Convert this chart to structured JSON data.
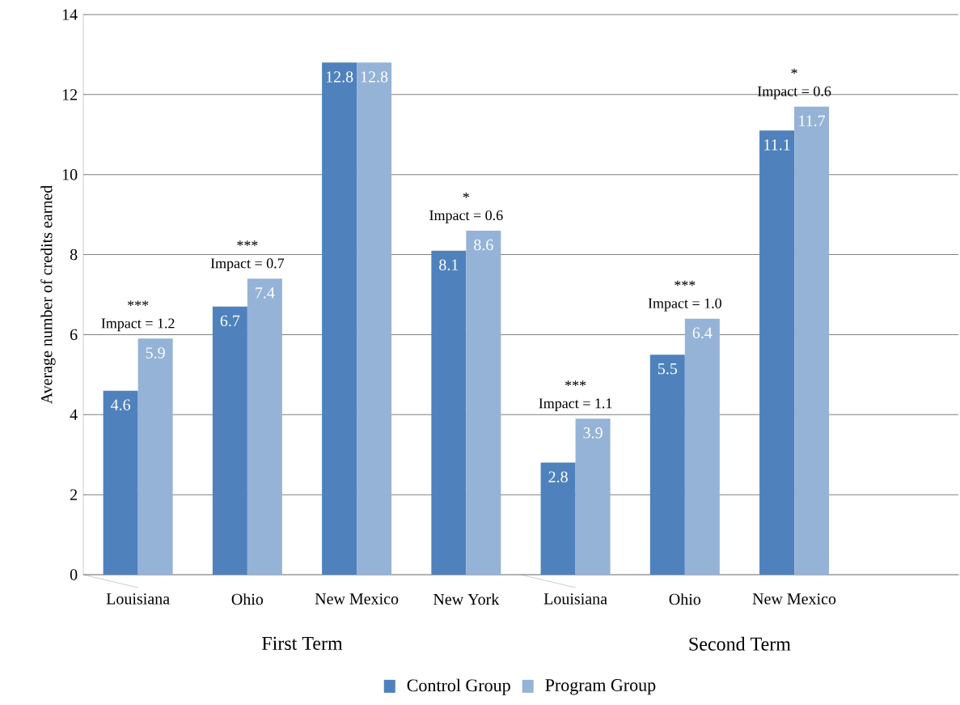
{
  "chart_data": {
    "type": "bar",
    "ylabel": "Average number of credits earned",
    "categories": [
      "Louisiana",
      "Ohio",
      "New Mexico",
      "New York",
      "Louisiana",
      "Ohio",
      "New Mexico",
      null
    ],
    "series": [
      {
        "name": "Control Group",
        "color": "#4f81bd",
        "values": [
          4.6,
          6.7,
          12.8,
          8.1,
          2.8,
          5.5,
          11.1,
          null
        ]
      },
      {
        "name": "Program Group",
        "color": "#95b3d7",
        "values": [
          5.9,
          7.4,
          12.8,
          8.6,
          3.9,
          6.4,
          11.7,
          null
        ]
      }
    ],
    "ylim": [
      0,
      14
    ],
    "yticks": [
      0,
      2,
      4,
      6,
      8,
      10,
      12,
      14
    ],
    "grid": "y",
    "legend": "bottom",
    "data_labels": true,
    "annotations": [
      {
        "text": "Impact = 1.2",
        "y": 5.9
      },
      {
        "text": "***",
        "y": 5.9
      },
      {
        "text": "Impact = 0.7",
        "y": 7.4
      },
      {
        "text": "***",
        "y": 7.4
      },
      {
        "text": "Impact = 0.6",
        "x": "New York",
        "y": 8.6
      },
      {
        "text": "*",
        "x": "New York",
        "y": 8.6
      },
      {
        "text": "Impact = 1.1",
        "y": 3.9
      },
      {
        "text": "***",
        "y": 3.9
      },
      {
        "text": "Impact = 1.0",
        "y": 6.4
      },
      {
        "text": "***",
        "y": 6.4
      },
      {
        "text": "Impact = 0.6",
        "y": 11.7
      },
      {
        "text": "*",
        "y": 11.7
      },
      "First Term",
      "Second Term"
    ]
  }
}
